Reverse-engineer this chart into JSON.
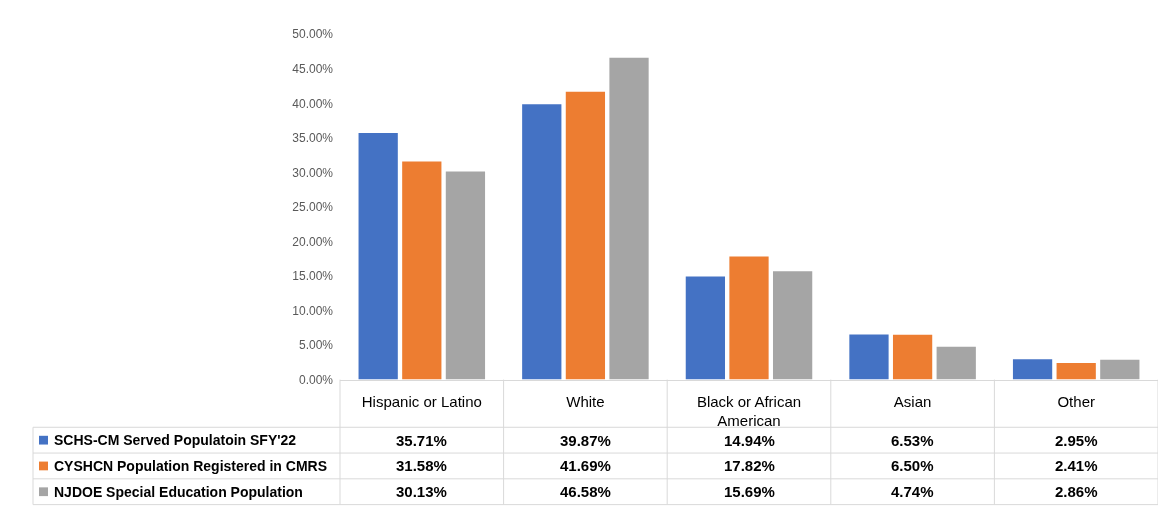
{
  "chart_data": {
    "type": "bar",
    "categories": [
      "Hispanic or Latino",
      "White",
      "Black or African American",
      "Asian",
      "Other"
    ],
    "series": [
      {
        "name": "SCHS-CM Served Populatoin SFY'22",
        "color": "#4472c4",
        "values": [
          35.71,
          39.87,
          14.94,
          6.53,
          2.95
        ],
        "value_labels": [
          "35.71%",
          "39.87%",
          "14.94%",
          "6.53%",
          "2.95%"
        ]
      },
      {
        "name": "CYSHCN Population Registered in CMRS",
        "color": "#ed7d31",
        "values": [
          31.58,
          41.69,
          17.82,
          6.5,
          2.41
        ],
        "value_labels": [
          "31.58%",
          "41.69%",
          "17.82%",
          "6.50%",
          "2.41%"
        ]
      },
      {
        "name": "NJDOE Special Education Population",
        "color": "#a5a5a5",
        "values": [
          30.13,
          46.58,
          15.69,
          4.74,
          2.86
        ],
        "value_labels": [
          "30.13%",
          "46.58%",
          "15.69%",
          "4.74%",
          "2.86%"
        ]
      }
    ],
    "ylim": [
      0,
      50
    ],
    "yticks": [
      {
        "value": 0,
        "label": "0.00%"
      },
      {
        "value": 5,
        "label": "5.00%"
      },
      {
        "value": 10,
        "label": "10.00%"
      },
      {
        "value": 15,
        "label": "15.00%"
      },
      {
        "value": 20,
        "label": "20.00%"
      },
      {
        "value": 25,
        "label": "25.00%"
      },
      {
        "value": 30,
        "label": "30.00%"
      },
      {
        "value": 35,
        "label": "35.00%"
      },
      {
        "value": 40,
        "label": "40.00%"
      },
      {
        "value": 45,
        "label": "45.00%"
      },
      {
        "value": 50,
        "label": "50.00%"
      }
    ],
    "grid": false,
    "legend": "bottom left"
  }
}
